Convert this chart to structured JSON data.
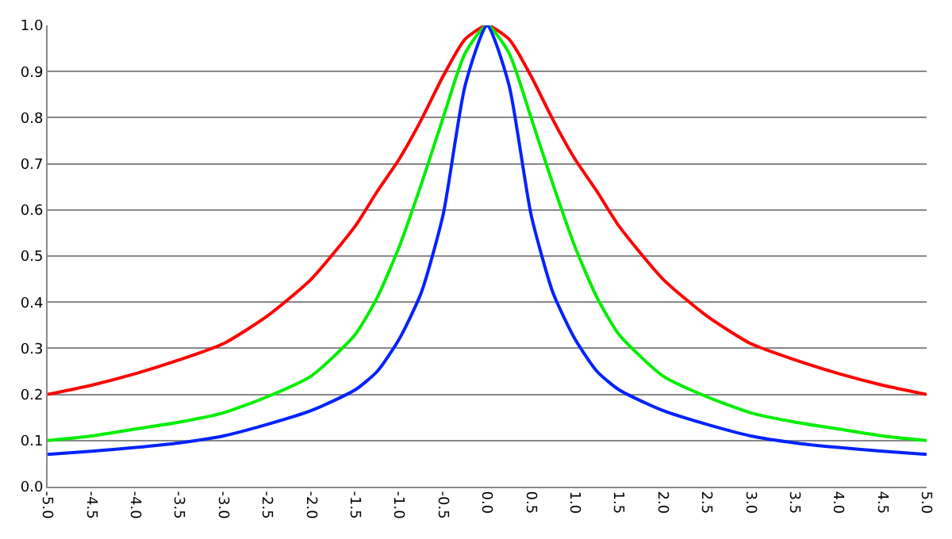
{
  "chart_data": {
    "type": "line",
    "grid": "y",
    "marker": "none",
    "line_style": "solid",
    "xlim": [
      -5,
      5
    ],
    "ylim": [
      0,
      1
    ],
    "xticks": [
      {
        "value": -5,
        "label": "-5.0"
      },
      {
        "value": -4.5,
        "label": "-4.5"
      },
      {
        "value": -4,
        "label": "-4.0"
      },
      {
        "value": -3.5,
        "label": "-3.5"
      },
      {
        "value": -3,
        "label": "-3.0"
      },
      {
        "value": -2.5,
        "label": "-2.5"
      },
      {
        "value": -2,
        "label": "-2.0"
      },
      {
        "value": -1.5,
        "label": "-1.5"
      },
      {
        "value": -1,
        "label": "-1.0"
      },
      {
        "value": -0.5,
        "label": "-0.5"
      },
      {
        "value": 0,
        "label": "0.0"
      },
      {
        "value": 0.5,
        "label": "0.5"
      },
      {
        "value": 1,
        "label": "1.0"
      },
      {
        "value": 1.5,
        "label": "1.5"
      },
      {
        "value": 2,
        "label": "2.0"
      },
      {
        "value": 2.5,
        "label": "2.5"
      },
      {
        "value": 3,
        "label": "3.0"
      },
      {
        "value": 3.5,
        "label": "3.5"
      },
      {
        "value": 4,
        "label": "4.0"
      },
      {
        "value": 4.5,
        "label": "4.5"
      },
      {
        "value": 5,
        "label": "5.0"
      }
    ],
    "yticks": [
      {
        "value": 0,
        "label": "0.0"
      },
      {
        "value": 0.1,
        "label": "0.1"
      },
      {
        "value": 0.2,
        "label": "0.2"
      },
      {
        "value": 0.3,
        "label": "0.3"
      },
      {
        "value": 0.4,
        "label": "0.4"
      },
      {
        "value": 0.5,
        "label": "0.5"
      },
      {
        "value": 0.6,
        "label": "0.6"
      },
      {
        "value": 0.7,
        "label": "0.7"
      },
      {
        "value": 0.8,
        "label": "0.8"
      },
      {
        "value": 0.9,
        "label": "0.9"
      },
      {
        "value": 1,
        "label": "1.0"
      }
    ],
    "x": [
      -5,
      -4.5,
      -4,
      -3.5,
      -3,
      -2.5,
      -2,
      -1.5,
      -1.25,
      -1,
      -0.75,
      -0.5,
      -0.25,
      0,
      0.25,
      0.5,
      0.75,
      1,
      1.25,
      1.5,
      2,
      2.5,
      3,
      3.5,
      4,
      4.5,
      5
    ],
    "series": [
      {
        "color": "#ff0000",
        "values": [
          0.2,
          0.22,
          0.245,
          0.275,
          0.31,
          0.37,
          0.45,
          0.565,
          0.64,
          0.71,
          0.795,
          0.89,
          0.97,
          1,
          0.97,
          0.89,
          0.795,
          0.71,
          0.64,
          0.565,
          0.45,
          0.37,
          0.31,
          0.275,
          0.245,
          0.22,
          0.2
        ]
      },
      {
        "color": "#00ee00",
        "values": [
          0.1,
          0.11,
          0.125,
          0.14,
          0.16,
          0.195,
          0.24,
          0.33,
          0.41,
          0.52,
          0.655,
          0.8,
          0.94,
          1,
          0.94,
          0.8,
          0.655,
          0.52,
          0.41,
          0.33,
          0.24,
          0.195,
          0.16,
          0.14,
          0.125,
          0.11,
          0.1
        ]
      },
      {
        "color": "#0022ff",
        "values": [
          0.07,
          0.077,
          0.085,
          0.095,
          0.11,
          0.135,
          0.165,
          0.21,
          0.25,
          0.32,
          0.42,
          0.59,
          0.87,
          1,
          0.87,
          0.59,
          0.42,
          0.32,
          0.25,
          0.21,
          0.165,
          0.135,
          0.11,
          0.095,
          0.085,
          0.077,
          0.07
        ]
      }
    ]
  }
}
